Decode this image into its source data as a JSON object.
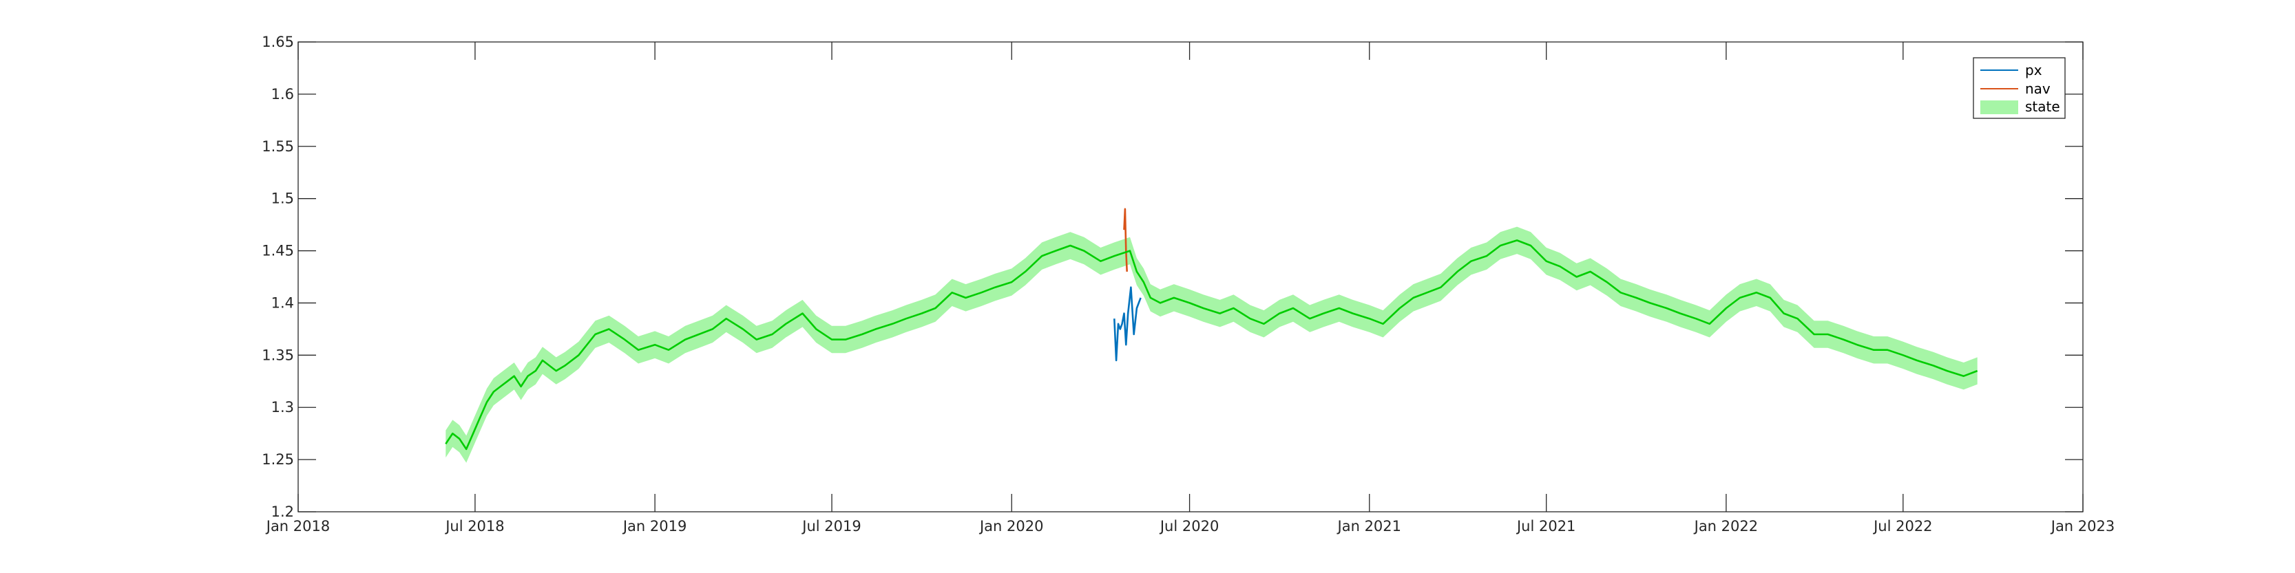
{
  "chart_data": {
    "type": "line",
    "title": "",
    "xlabel": "",
    "ylabel": "",
    "xlim": [
      "2018-01-01",
      "2023-01-01"
    ],
    "ylim": [
      1.2,
      1.65
    ],
    "xticks": [
      {
        "date": "2018-01-01",
        "label": "Jan 2018"
      },
      {
        "date": "2018-07-01",
        "label": "Jul 2018"
      },
      {
        "date": "2019-01-01",
        "label": "Jan 2019"
      },
      {
        "date": "2019-07-01",
        "label": "Jul 2019"
      },
      {
        "date": "2020-01-01",
        "label": "Jan 2020"
      },
      {
        "date": "2020-07-01",
        "label": "Jul 2020"
      },
      {
        "date": "2021-01-01",
        "label": "Jan 2021"
      },
      {
        "date": "2021-07-01",
        "label": "Jul 2021"
      },
      {
        "date": "2022-01-01",
        "label": "Jan 2022"
      },
      {
        "date": "2022-07-01",
        "label": "Jul 2022"
      },
      {
        "date": "2023-01-01",
        "label": "Jan 2023"
      }
    ],
    "yticks": [
      {
        "value": 1.2,
        "label": "1.2"
      },
      {
        "value": 1.25,
        "label": "1.25"
      },
      {
        "value": 1.3,
        "label": "1.3"
      },
      {
        "value": 1.35,
        "label": "1.35"
      },
      {
        "value": 1.4,
        "label": "1.4"
      },
      {
        "value": 1.45,
        "label": "1.45"
      },
      {
        "value": 1.5,
        "label": "1.5"
      },
      {
        "value": 1.55,
        "label": "1.55"
      },
      {
        "value": 1.6,
        "label": "1.6"
      },
      {
        "value": 1.65,
        "label": "1.65"
      }
    ],
    "grid": false,
    "legend_position": "top-right",
    "series": [
      {
        "name": "px",
        "kind": "line",
        "color": "#0072BD",
        "points": [
          [
            "2020-04-15",
            1.385
          ],
          [
            "2020-04-17",
            1.345
          ],
          [
            "2020-04-19",
            1.38
          ],
          [
            "2020-04-21",
            1.375
          ],
          [
            "2020-04-23",
            1.38
          ],
          [
            "2020-04-25",
            1.39
          ],
          [
            "2020-04-27",
            1.36
          ],
          [
            "2020-04-29",
            1.39
          ],
          [
            "2020-05-02",
            1.415
          ],
          [
            "2020-05-05",
            1.37
          ],
          [
            "2020-05-08",
            1.395
          ],
          [
            "2020-05-12",
            1.405
          ]
        ]
      },
      {
        "name": "nav",
        "kind": "line",
        "color": "#D95319",
        "points": [
          [
            "2020-04-25",
            1.47
          ],
          [
            "2020-04-26",
            1.49
          ],
          [
            "2020-04-27",
            1.45
          ],
          [
            "2020-04-28",
            1.43
          ]
        ]
      },
      {
        "name": "state",
        "kind": "line_with_band",
        "color": "#00CC00",
        "band_color": "#A6F5A6",
        "band_halfwidth": 0.013,
        "points": [
          [
            "2018-06-01",
            1.265
          ],
          [
            "2018-06-08",
            1.275
          ],
          [
            "2018-06-15",
            1.27
          ],
          [
            "2018-06-22",
            1.26
          ],
          [
            "2018-06-29",
            1.275
          ],
          [
            "2018-07-06",
            1.29
          ],
          [
            "2018-07-13",
            1.305
          ],
          [
            "2018-07-20",
            1.315
          ],
          [
            "2018-07-27",
            1.32
          ],
          [
            "2018-08-03",
            1.325
          ],
          [
            "2018-08-10",
            1.33
          ],
          [
            "2018-08-17",
            1.32
          ],
          [
            "2018-08-24",
            1.33
          ],
          [
            "2018-09-01",
            1.335
          ],
          [
            "2018-09-08",
            1.345
          ],
          [
            "2018-09-15",
            1.34
          ],
          [
            "2018-09-22",
            1.335
          ],
          [
            "2018-10-01",
            1.34
          ],
          [
            "2018-10-15",
            1.35
          ],
          [
            "2018-11-01",
            1.37
          ],
          [
            "2018-11-15",
            1.375
          ],
          [
            "2018-12-01",
            1.365
          ],
          [
            "2018-12-15",
            1.355
          ],
          [
            "2019-01-01",
            1.36
          ],
          [
            "2019-01-15",
            1.355
          ],
          [
            "2019-02-01",
            1.365
          ],
          [
            "2019-02-15",
            1.37
          ],
          [
            "2019-03-01",
            1.375
          ],
          [
            "2019-03-15",
            1.385
          ],
          [
            "2019-04-01",
            1.375
          ],
          [
            "2019-04-15",
            1.365
          ],
          [
            "2019-05-01",
            1.37
          ],
          [
            "2019-05-15",
            1.38
          ],
          [
            "2019-06-01",
            1.39
          ],
          [
            "2019-06-15",
            1.375
          ],
          [
            "2019-07-01",
            1.365
          ],
          [
            "2019-07-15",
            1.365
          ],
          [
            "2019-08-01",
            1.37
          ],
          [
            "2019-08-15",
            1.375
          ],
          [
            "2019-09-01",
            1.38
          ],
          [
            "2019-09-15",
            1.385
          ],
          [
            "2019-10-01",
            1.39
          ],
          [
            "2019-10-15",
            1.395
          ],
          [
            "2019-11-01",
            1.41
          ],
          [
            "2019-11-15",
            1.405
          ],
          [
            "2019-12-01",
            1.41
          ],
          [
            "2019-12-15",
            1.415
          ],
          [
            "2020-01-01",
            1.42
          ],
          [
            "2020-01-15",
            1.43
          ],
          [
            "2020-02-01",
            1.445
          ],
          [
            "2020-02-15",
            1.45
          ],
          [
            "2020-03-01",
            1.455
          ],
          [
            "2020-03-15",
            1.45
          ],
          [
            "2020-04-01",
            1.44
          ],
          [
            "2020-04-15",
            1.445
          ],
          [
            "2020-05-01",
            1.45
          ],
          [
            "2020-05-08",
            1.43
          ],
          [
            "2020-05-15",
            1.42
          ],
          [
            "2020-05-22",
            1.405
          ],
          [
            "2020-06-01",
            1.4
          ],
          [
            "2020-06-15",
            1.405
          ],
          [
            "2020-07-01",
            1.4
          ],
          [
            "2020-07-15",
            1.395
          ],
          [
            "2020-08-01",
            1.39
          ],
          [
            "2020-08-15",
            1.395
          ],
          [
            "2020-09-01",
            1.385
          ],
          [
            "2020-09-15",
            1.38
          ],
          [
            "2020-10-01",
            1.39
          ],
          [
            "2020-10-15",
            1.395
          ],
          [
            "2020-11-01",
            1.385
          ],
          [
            "2020-11-15",
            1.39
          ],
          [
            "2020-12-01",
            1.395
          ],
          [
            "2020-12-15",
            1.39
          ],
          [
            "2021-01-01",
            1.385
          ],
          [
            "2021-01-15",
            1.38
          ],
          [
            "2021-02-01",
            1.395
          ],
          [
            "2021-02-15",
            1.405
          ],
          [
            "2021-03-01",
            1.41
          ],
          [
            "2021-03-15",
            1.415
          ],
          [
            "2021-04-01",
            1.43
          ],
          [
            "2021-04-15",
            1.44
          ],
          [
            "2021-05-01",
            1.445
          ],
          [
            "2021-05-15",
            1.455
          ],
          [
            "2021-06-01",
            1.46
          ],
          [
            "2021-06-15",
            1.455
          ],
          [
            "2021-07-01",
            1.44
          ],
          [
            "2021-07-15",
            1.435
          ],
          [
            "2021-08-01",
            1.425
          ],
          [
            "2021-08-15",
            1.43
          ],
          [
            "2021-09-01",
            1.42
          ],
          [
            "2021-09-15",
            1.41
          ],
          [
            "2021-10-01",
            1.405
          ],
          [
            "2021-10-15",
            1.4
          ],
          [
            "2021-11-01",
            1.395
          ],
          [
            "2021-11-15",
            1.39
          ],
          [
            "2021-12-01",
            1.385
          ],
          [
            "2021-12-15",
            1.38
          ],
          [
            "2022-01-01",
            1.395
          ],
          [
            "2022-01-15",
            1.405
          ],
          [
            "2022-02-01",
            1.41
          ],
          [
            "2022-02-15",
            1.405
          ],
          [
            "2022-03-01",
            1.39
          ],
          [
            "2022-03-15",
            1.385
          ],
          [
            "2022-04-01",
            1.37
          ],
          [
            "2022-04-15",
            1.37
          ],
          [
            "2022-05-01",
            1.365
          ],
          [
            "2022-05-15",
            1.36
          ],
          [
            "2022-06-01",
            1.355
          ],
          [
            "2022-06-15",
            1.355
          ],
          [
            "2022-07-01",
            1.35
          ],
          [
            "2022-07-15",
            1.345
          ],
          [
            "2022-08-01",
            1.34
          ],
          [
            "2022-08-15",
            1.335
          ],
          [
            "2022-09-01",
            1.33
          ],
          [
            "2022-09-15",
            1.335
          ]
        ]
      }
    ]
  }
}
